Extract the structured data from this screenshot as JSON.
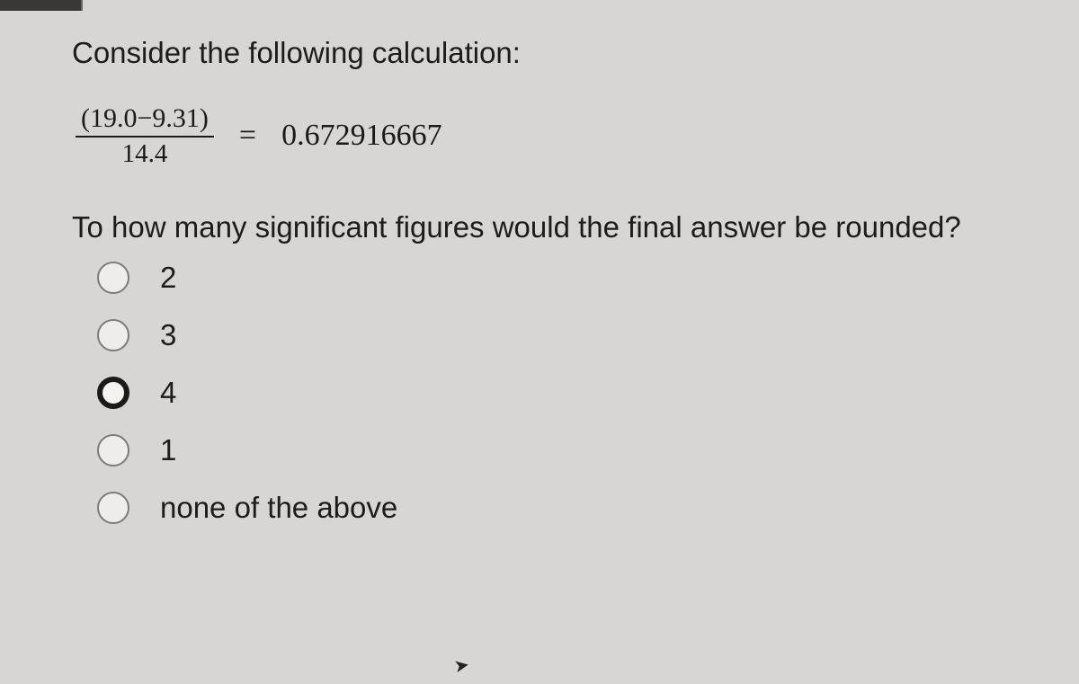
{
  "intro_text": "Consider the following calculation:",
  "equation": {
    "numerator": "(19.0−9.31)",
    "denominator": "14.4",
    "equals": "=",
    "result": "0.672916667"
  },
  "question_text": "To how many significant figures would the final answer be rounded?",
  "options": [
    {
      "label": "2",
      "selected": false
    },
    {
      "label": "3",
      "selected": false
    },
    {
      "label": "4",
      "selected": true
    },
    {
      "label": "1",
      "selected": false
    },
    {
      "label": "none of the above",
      "selected": false
    }
  ],
  "colors": {
    "background": "#d8d6d4",
    "text": "#1a1a1a",
    "radio_border": "#7d7a77",
    "radio_fill": "#efedea",
    "tab": "#3a3836"
  }
}
